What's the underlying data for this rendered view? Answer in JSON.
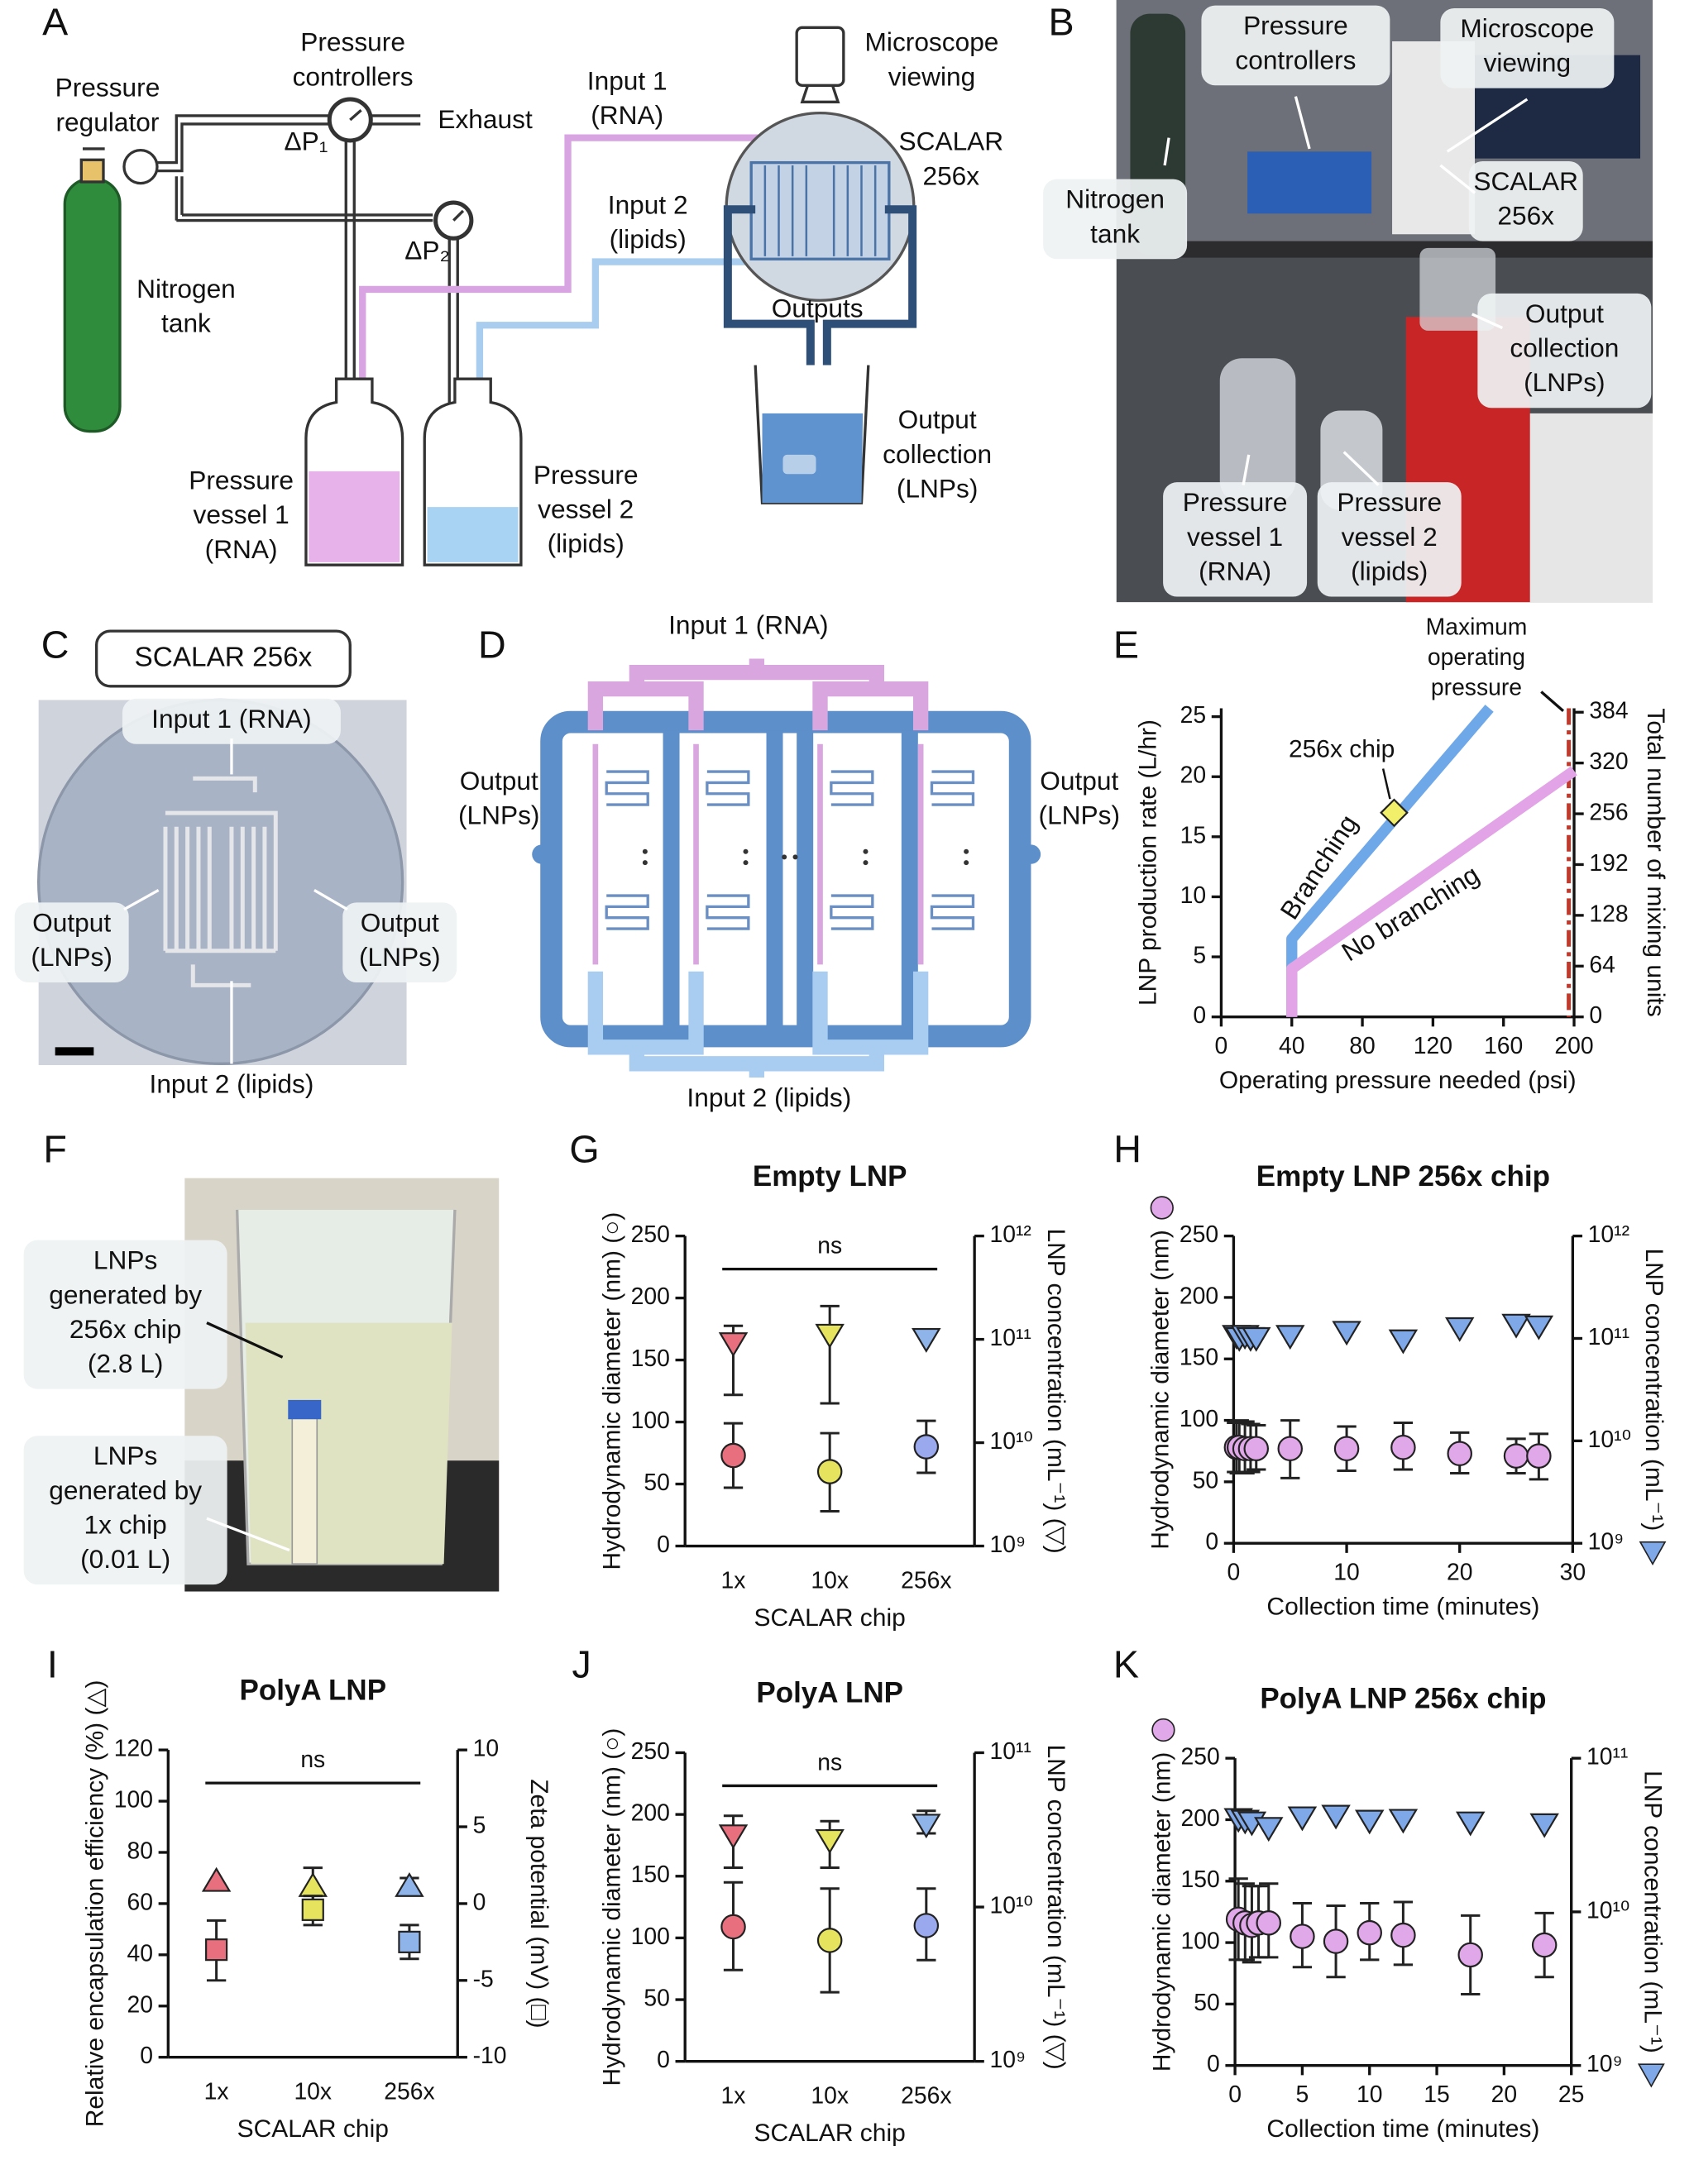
{
  "panel_letters": [
    "A",
    "B",
    "C",
    "D",
    "E",
    "F",
    "G",
    "H",
    "I",
    "J",
    "K"
  ],
  "panel_a": {
    "labels": [
      [
        "Pressure",
        "regulator"
      ],
      [
        "Nitrogen",
        "tank"
      ],
      [
        "Pressure",
        "controllers"
      ],
      [
        "ΔP₁"
      ],
      [
        "Exhaust"
      ],
      [
        "ΔP₂"
      ],
      [
        "Input 1",
        "(RNA)"
      ],
      [
        "Input 2",
        "(lipids)"
      ],
      [
        "Microscope",
        "viewing"
      ],
      [
        "SCALAR",
        "256x"
      ],
      [
        "Outputs"
      ],
      [
        "Output",
        "collection",
        "(LNPs)"
      ],
      [
        "Pressure",
        "vessel 1",
        "(RNA)"
      ],
      [
        "Pressure",
        "vessel 2",
        "(lipids)"
      ]
    ]
  },
  "panel_b": {
    "labels": [
      [
        "Pressure",
        "controllers"
      ],
      [
        "Microscope",
        "viewing"
      ],
      [
        "Nitrogen",
        "tank"
      ],
      [
        "SCALAR",
        "256x"
      ],
      [
        "Output",
        "collection",
        "(LNPs)"
      ],
      [
        "Pressure",
        "vessel 1",
        "(RNA)"
      ],
      [
        "Pressure",
        "vessel 2",
        "(lipids)"
      ]
    ]
  },
  "panel_c": {
    "title": "SCALAR 256x",
    "labels": [
      [
        "Input 1 (RNA)"
      ],
      [
        "Output",
        "(LNPs)"
      ],
      [
        "Output",
        "(LNPs)"
      ],
      [
        "Input 2 (lipids)"
      ]
    ]
  },
  "panel_d": {
    "labels": [
      [
        "Input 1 (RNA)"
      ],
      [
        "Output",
        "(LNPs)"
      ],
      [
        "Output",
        "(LNPs)"
      ],
      [
        "Input 2 (lipids)"
      ]
    ]
  },
  "panel_f": {
    "labels": [
      [
        "LNPs",
        "generated by",
        "256x chip",
        "(2.8 L)"
      ],
      [
        "LNPs",
        "generated by",
        "1x chip",
        "(0.01 L)"
      ]
    ]
  },
  "chart_data": [
    {
      "type": "line",
      "xlabel": "Operating pressure needed (psi)",
      "ylabel": "LNP production rate (L/hr)",
      "y2label": "Total number of mixing units",
      "xlim": [
        0,
        200
      ],
      "xticks": [
        0,
        40,
        80,
        120,
        160,
        200
      ],
      "ylim": [
        0,
        25.7
      ],
      "yticks": [
        0,
        5,
        10,
        15,
        20,
        25
      ],
      "y2lim": [
        0,
        389
      ],
      "y2ticks": [
        0,
        64,
        128,
        192,
        256,
        320,
        384
      ],
      "series": [
        {
          "name": "Branching",
          "color": "#6fa8e8",
          "x": [
            40,
            40,
            152
          ],
          "values": [
            0,
            6.5,
            25.7
          ]
        },
        {
          "name": "No branching",
          "color": "#e2a4e6",
          "x": [
            40,
            40,
            200
          ],
          "values": [
            0,
            4,
            20.5
          ]
        }
      ],
      "highlight": {
        "label": "256x chip",
        "x": 98,
        "y": 17,
        "color": "#f2f06a"
      },
      "vline": {
        "label": [
          "Maximum",
          "operating",
          "pressure"
        ],
        "x": 197,
        "color": "#c0392b"
      }
    },
    {
      "type": "dot",
      "title": "Empty LNP",
      "xlabel": "SCALAR chip",
      "ylabel": "Hydrodynamic diameter (nm) (○)",
      "y2label": "LNP concentration (mL⁻¹) (▽)",
      "annotation": "ns",
      "categories": [
        "1x",
        "10x",
        "256x"
      ],
      "ylim": [
        0,
        250
      ],
      "yticks": [
        0,
        50,
        100,
        150,
        200,
        250
      ],
      "y2log": true,
      "y2lim": [
        1000000000.0,
        1000000000000.0
      ],
      "y2ticks": [
        {
          "value": 1000000000.0,
          "label": "10⁹"
        },
        {
          "value": 10000000000.0,
          "label": "10¹⁰"
        },
        {
          "value": 100000000000.0,
          "label": "10¹¹"
        },
        {
          "value": 1000000000000.0,
          "label": "10¹²"
        }
      ],
      "series": [
        {
          "marker": "tri_down",
          "axis": "y2",
          "colors": [
            "#e8707e",
            "#e6e45e",
            "#8fb4ea"
          ],
          "values": [
            91000000000.0,
            110000000000.0,
            100000000000.0
          ],
          "low": [
            29000000000.0,
            24000000000.0,
            null
          ],
          "high": [
            135000000000.0,
            210000000000.0,
            null
          ]
        },
        {
          "marker": "circle",
          "axis": "y",
          "colors": [
            "#e8707e",
            "#e6e45e",
            "#9aa8ee"
          ],
          "values": [
            73,
            60,
            80
          ],
          "low": [
            47,
            28,
            59
          ],
          "high": [
            99,
            91,
            101
          ]
        }
      ]
    },
    {
      "type": "scatter",
      "title": "Empty LNP 256x chip",
      "xlabel": "Collection time (minutes)",
      "ylabel": "Hydrodynamic diameter (nm)",
      "y2label": "LNP concentration (mL⁻¹)",
      "axis_icons": true,
      "xlim": [
        0,
        30
      ],
      "xticks": [
        0,
        10,
        20,
        30
      ],
      "ylim": [
        0,
        250
      ],
      "yticks": [
        0,
        50,
        100,
        150,
        200,
        250
      ],
      "y2log": true,
      "y2lim": [
        1000000000.0,
        1000000000000.0
      ],
      "y2ticks": [
        {
          "value": 1000000000.0,
          "label": "10⁹"
        },
        {
          "value": 10000000000.0,
          "label": "10¹⁰"
        },
        {
          "value": 100000000000.0,
          "label": "10¹¹"
        },
        {
          "value": 1000000000000.0,
          "label": "10¹²"
        }
      ],
      "series": [
        {
          "marker": "tri_down",
          "axis": "y2",
          "color": "#7fa8e8",
          "x": [
            0.25,
            0.5,
            1,
            1.5,
            2,
            5,
            10,
            15,
            20,
            25,
            27
          ],
          "values": [
            105000000000.0,
            100000000000.0,
            105000000000.0,
            100000000000.0,
            100000000000.0,
            105000000000.0,
            115000000000.0,
            95000000000.0,
            125000000000.0,
            135000000000.0,
            130000000000.0
          ]
        },
        {
          "marker": "circle",
          "axis": "y",
          "color": "#e0a8e8",
          "x": [
            0.25,
            0.5,
            1,
            1.5,
            2,
            5,
            10,
            15,
            20,
            25,
            27
          ],
          "values": [
            78,
            78,
            77,
            77,
            77,
            77,
            77,
            78,
            73,
            71,
            71
          ],
          "low": [
            58,
            57,
            57,
            58,
            60,
            53,
            59,
            60,
            57,
            57,
            52
          ],
          "high": [
            98,
            100,
            99,
            97,
            96,
            100,
            95,
            98,
            90,
            85,
            89
          ]
        }
      ]
    },
    {
      "type": "dot",
      "title": "PolyA LNP",
      "xlabel": "SCALAR chip",
      "ylabel": "Relative encapsulation efficiency (%) (△)",
      "y2label": "Zeta potential (mV) (□)",
      "annotation": "ns",
      "categories": [
        "1x",
        "10x",
        "256x"
      ],
      "ylim": [
        0,
        120
      ],
      "yticks": [
        0,
        20,
        40,
        60,
        80,
        100,
        120
      ],
      "y2lim": [
        -10,
        10
      ],
      "y2ticks": [
        -10,
        -5,
        0,
        5,
        10
      ],
      "series": [
        {
          "marker": "tri_up",
          "axis": "y",
          "colors": [
            "#e8707e",
            "#e6e45e",
            "#8fb4ea"
          ],
          "values": [
            69,
            67,
            67
          ],
          "low": [
            null,
            61,
            64
          ],
          "high": [
            null,
            74,
            70
          ]
        },
        {
          "marker": "square",
          "axis": "y2",
          "colors": [
            "#e8707e",
            "#e6e45e",
            "#8fb4ea"
          ],
          "values": [
            -3.0,
            -0.4,
            -2.5
          ],
          "low": [
            -5.0,
            -1.4,
            -3.6
          ],
          "high": [
            -1.1,
            0.5,
            -1.4
          ]
        }
      ]
    },
    {
      "type": "dot",
      "title": "PolyA LNP",
      "xlabel": "SCALAR chip",
      "ylabel": "Hydrodynamic diameter (nm) (○)",
      "y2label": "LNP concentration (mL⁻¹) (▽)",
      "annotation": "ns",
      "categories": [
        "1x",
        "10x",
        "256x"
      ],
      "ylim": [
        0,
        250
      ],
      "yticks": [
        0,
        50,
        100,
        150,
        200,
        250
      ],
      "y2log": true,
      "y2lim": [
        1000000000.0,
        100000000000.0
      ],
      "y2ticks": [
        {
          "value": 1000000000.0,
          "label": "10⁹"
        },
        {
          "value": 10000000000.0,
          "label": "10¹⁰"
        },
        {
          "value": 100000000000.0,
          "label": "10¹¹"
        }
      ],
      "series": [
        {
          "marker": "tri_down",
          "axis": "y2",
          "colors": [
            "#e8707e",
            "#e6e45e",
            "#8fb4ea"
          ],
          "values": [
            29000000000.0,
            27000000000.0,
            34000000000.0
          ],
          "low": [
            18000000000.0,
            18000000000.0,
            30000000000.0
          ],
          "high": [
            39000000000.0,
            36000000000.0,
            42000000000.0
          ]
        },
        {
          "marker": "circle",
          "axis": "y",
          "colors": [
            "#e8707e",
            "#e6e45e",
            "#9aa8ee"
          ],
          "values": [
            109,
            98,
            110
          ],
          "low": [
            74,
            56,
            82
          ],
          "high": [
            145,
            140,
            140
          ]
        }
      ]
    },
    {
      "type": "scatter",
      "title": "PolyA LNP 256x chip",
      "xlabel": "Collection time (minutes)",
      "ylabel": "Hydrodynamic diameter (nm)",
      "y2label": "LNP concentration (mL⁻¹)",
      "axis_icons": true,
      "xlim": [
        0,
        25
      ],
      "xticks": [
        0,
        5,
        10,
        15,
        20,
        25
      ],
      "ylim": [
        0,
        250
      ],
      "yticks": [
        0,
        50,
        100,
        150,
        200,
        250
      ],
      "y2log": true,
      "y2lim": [
        1000000000.0,
        100000000000.0
      ],
      "y2ticks": [
        {
          "value": 1000000000.0,
          "label": "10⁹"
        },
        {
          "value": 10000000000.0,
          "label": "10¹⁰"
        },
        {
          "value": 100000000000.0,
          "label": "10¹¹"
        }
      ],
      "series": [
        {
          "marker": "tri_down",
          "axis": "y2",
          "color": "#7fa8e8",
          "x": [
            0.25,
            0.75,
            1.25,
            2.5,
            5,
            7.5,
            10,
            12.5,
            17.5,
            23
          ],
          "values": [
            40000000000.0,
            39000000000.0,
            38000000000.0,
            35000000000.0,
            41000000000.0,
            42000000000.0,
            39000000000.0,
            39500000000.0,
            38000000000.0,
            37000000000.0
          ]
        },
        {
          "marker": "circle",
          "axis": "y",
          "color": "#e0a8e8",
          "x": [
            0.25,
            0.75,
            1.25,
            1.75,
            2.5,
            5,
            7.5,
            10,
            12.5,
            17.5,
            23
          ],
          "values": [
            119,
            116,
            114,
            116,
            116,
            105,
            101,
            108,
            106,
            90,
            98
          ],
          "low": [
            86,
            86,
            84,
            88,
            88,
            80,
            72,
            86,
            82,
            58,
            72
          ],
          "high": [
            152,
            148,
            146,
            146,
            148,
            132,
            130,
            132,
            133,
            122,
            124
          ]
        }
      ]
    }
  ]
}
